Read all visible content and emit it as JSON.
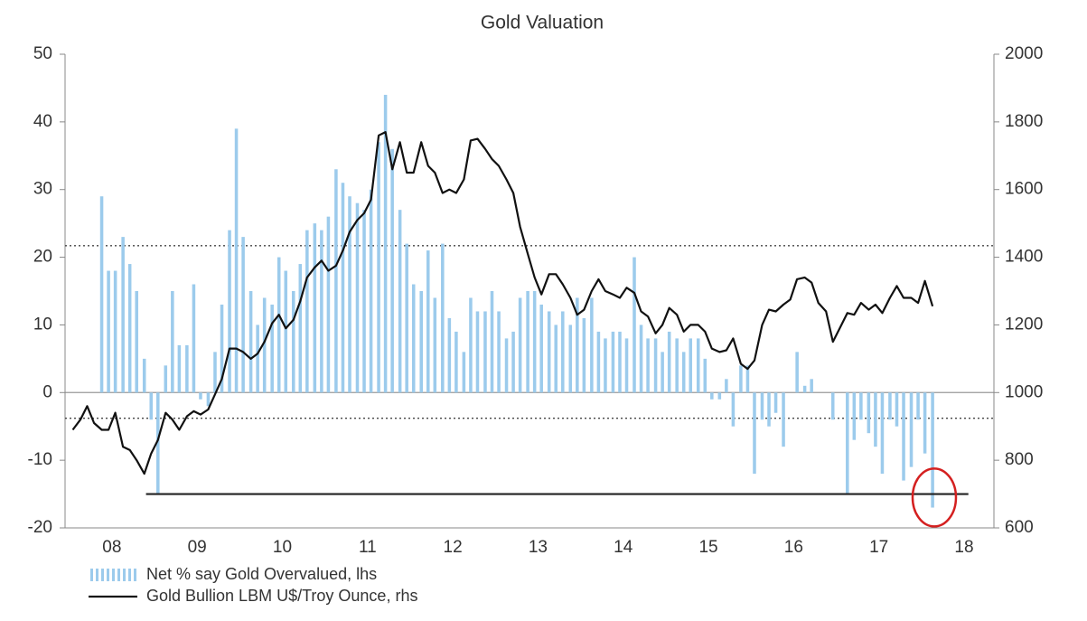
{
  "chart_data": {
    "type": "combo",
    "title": "Gold Valuation",
    "xlim": [
      2007.95,
      2018.85
    ],
    "xticks": [
      {
        "value": 2008.5,
        "label": "08"
      },
      {
        "value": 2009.5,
        "label": "09"
      },
      {
        "value": 2010.5,
        "label": "10"
      },
      {
        "value": 2011.5,
        "label": "11"
      },
      {
        "value": 2012.5,
        "label": "12"
      },
      {
        "value": 2013.5,
        "label": "13"
      },
      {
        "value": 2014.5,
        "label": "14"
      },
      {
        "value": 2015.5,
        "label": "15"
      },
      {
        "value": 2016.5,
        "label": "16"
      },
      {
        "value": 2017.5,
        "label": "17"
      },
      {
        "value": 2018.5,
        "label": "18"
      }
    ],
    "ylim": [
      -20,
      50
    ],
    "yticks": [
      -20,
      -10,
      0,
      10,
      20,
      30,
      40,
      50
    ],
    "y2lim": [
      600,
      2000
    ],
    "y2ticks": [
      600,
      800,
      1000,
      1200,
      1400,
      1600,
      1800,
      2000
    ],
    "reference_lines": [
      {
        "value": 21.7
      },
      {
        "value": -3.8
      }
    ],
    "support_line": {
      "value": -15,
      "x": [
        2008.9,
        2018.55
      ]
    },
    "highlight": {
      "x": 2018.15,
      "y": -15.5,
      "color": "#d42020"
    },
    "series": [
      {
        "name": "Net % say Gold Overvalued, lhs",
        "type": "bar",
        "axis": "y",
        "color": "#9ccbec",
        "x": [
          2008.38,
          2008.46,
          2008.54,
          2008.63,
          2008.71,
          2008.79,
          2008.88,
          2008.96,
          2009.04,
          2009.13,
          2009.21,
          2009.29,
          2009.38,
          2009.46,
          2009.54,
          2009.63,
          2009.71,
          2009.79,
          2009.88,
          2009.96,
          2010.04,
          2010.13,
          2010.21,
          2010.29,
          2010.38,
          2010.46,
          2010.54,
          2010.63,
          2010.71,
          2010.79,
          2010.88,
          2010.96,
          2011.04,
          2011.13,
          2011.21,
          2011.29,
          2011.38,
          2011.46,
          2011.54,
          2011.63,
          2011.71,
          2011.79,
          2011.88,
          2011.96,
          2012.04,
          2012.13,
          2012.21,
          2012.29,
          2012.38,
          2012.46,
          2012.54,
          2012.63,
          2012.71,
          2012.79,
          2012.88,
          2012.96,
          2013.04,
          2013.13,
          2013.21,
          2013.29,
          2013.38,
          2013.46,
          2013.54,
          2013.63,
          2013.71,
          2013.79,
          2013.88,
          2013.96,
          2014.04,
          2014.13,
          2014.21,
          2014.29,
          2014.38,
          2014.46,
          2014.54,
          2014.63,
          2014.71,
          2014.79,
          2014.88,
          2014.96,
          2015.04,
          2015.13,
          2015.21,
          2015.29,
          2015.38,
          2015.46,
          2015.54,
          2015.63,
          2015.71,
          2015.79,
          2015.88,
          2015.96,
          2016.04,
          2016.13,
          2016.21,
          2016.29,
          2016.38,
          2016.46,
          2016.54,
          2016.63,
          2016.71,
          2016.79,
          2016.88,
          2016.96,
          2017.04,
          2017.13,
          2017.21,
          2017.29,
          2017.38,
          2017.46,
          2017.54,
          2017.63,
          2017.71,
          2017.79,
          2017.88,
          2017.96,
          2018.04,
          2018.13
        ],
        "values": [
          29,
          18,
          18,
          23,
          19,
          15,
          5,
          -4,
          -15,
          4,
          15,
          7,
          7,
          16,
          -1,
          -2,
          6,
          13,
          24,
          39,
          23,
          15,
          10,
          14,
          13,
          20,
          18,
          15,
          19,
          24,
          25,
          24,
          26,
          33,
          31,
          29,
          28,
          27,
          30,
          37,
          44,
          36,
          27,
          22,
          16,
          15,
          21,
          14,
          22,
          11,
          9,
          6,
          14,
          12,
          12,
          15,
          12,
          8,
          9,
          14,
          15,
          15,
          13,
          12,
          10,
          12,
          10,
          14,
          11,
          14,
          9,
          8,
          9,
          9,
          8,
          20,
          10,
          8,
          8,
          6,
          9,
          8,
          6,
          8,
          8,
          5,
          -1,
          -1,
          2,
          -5,
          4,
          4,
          -12,
          -4,
          -5,
          -3,
          -8,
          0,
          6,
          1,
          2,
          0,
          0,
          -4,
          0,
          -15,
          -7,
          -4,
          -6,
          -8,
          -12,
          -4,
          -5,
          -13,
          -11,
          -4,
          -9,
          -17
        ]
      },
      {
        "name": "Gold Bullion LBM U$/Troy Ounce, rhs",
        "type": "line",
        "axis": "y2",
        "color": "#111111",
        "x": [
          2008.04,
          2008.13,
          2008.21,
          2008.29,
          2008.38,
          2008.46,
          2008.54,
          2008.63,
          2008.71,
          2008.79,
          2008.88,
          2008.96,
          2009.04,
          2009.13,
          2009.21,
          2009.29,
          2009.38,
          2009.46,
          2009.54,
          2009.63,
          2009.71,
          2009.79,
          2009.88,
          2009.96,
          2010.04,
          2010.13,
          2010.21,
          2010.29,
          2010.38,
          2010.46,
          2010.54,
          2010.63,
          2010.71,
          2010.79,
          2010.88,
          2010.96,
          2011.04,
          2011.13,
          2011.21,
          2011.29,
          2011.38,
          2011.46,
          2011.54,
          2011.63,
          2011.71,
          2011.79,
          2011.88,
          2011.96,
          2012.04,
          2012.13,
          2012.21,
          2012.29,
          2012.38,
          2012.46,
          2012.54,
          2012.63,
          2012.71,
          2012.79,
          2012.88,
          2012.96,
          2013.04,
          2013.13,
          2013.21,
          2013.29,
          2013.38,
          2013.46,
          2013.54,
          2013.63,
          2013.71,
          2013.79,
          2013.88,
          2013.96,
          2014.04,
          2014.13,
          2014.21,
          2014.29,
          2014.38,
          2014.46,
          2014.54,
          2014.63,
          2014.71,
          2014.79,
          2014.88,
          2014.96,
          2015.04,
          2015.13,
          2015.21,
          2015.29,
          2015.38,
          2015.46,
          2015.54,
          2015.63,
          2015.71,
          2015.79,
          2015.88,
          2015.96,
          2016.04,
          2016.13,
          2016.21,
          2016.29,
          2016.38,
          2016.46,
          2016.54,
          2016.63,
          2016.71,
          2016.79,
          2016.88,
          2016.96,
          2017.04,
          2017.13,
          2017.21,
          2017.29,
          2017.38,
          2017.46,
          2017.54,
          2017.63,
          2017.71,
          2017.79,
          2017.88,
          2017.96,
          2018.04,
          2018.13
        ],
        "values": [
          890,
          920,
          960,
          910,
          890,
          890,
          940,
          840,
          830,
          800,
          760,
          820,
          860,
          940,
          920,
          890,
          930,
          945,
          935,
          950,
          995,
          1040,
          1130,
          1130,
          1120,
          1100,
          1115,
          1150,
          1205,
          1230,
          1190,
          1215,
          1270,
          1340,
          1370,
          1390,
          1360,
          1375,
          1420,
          1475,
          1510,
          1530,
          1570,
          1760,
          1770,
          1660,
          1740,
          1650,
          1650,
          1740,
          1670,
          1650,
          1590,
          1600,
          1590,
          1630,
          1745,
          1750,
          1720,
          1690,
          1670,
          1630,
          1590,
          1490,
          1410,
          1340,
          1290,
          1350,
          1350,
          1320,
          1280,
          1230,
          1245,
          1300,
          1335,
          1300,
          1290,
          1280,
          1310,
          1295,
          1240,
          1225,
          1175,
          1200,
          1250,
          1230,
          1180,
          1200,
          1200,
          1180,
          1130,
          1120,
          1125,
          1160,
          1085,
          1070,
          1095,
          1200,
          1245,
          1240,
          1260,
          1275,
          1335,
          1340,
          1325,
          1265,
          1240,
          1150,
          1190,
          1235,
          1230,
          1265,
          1245,
          1260,
          1235,
          1280,
          1315,
          1280,
          1280,
          1265,
          1330,
          1255
        ]
      }
    ]
  }
}
